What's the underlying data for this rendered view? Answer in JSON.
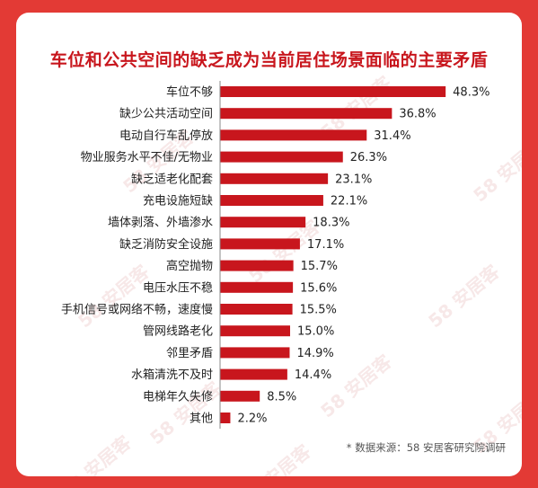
{
  "title": "车位和公共空间的缺乏成为当前居住场景面临的主要矛盾",
  "source": "* 数据来源：58 安居客研究院调研",
  "watermark": "58 安居客",
  "colors": {
    "background": "#e33a35",
    "bar": "#c8161d",
    "title": "#c8161d"
  },
  "chart_data": {
    "type": "bar",
    "orientation": "horizontal",
    "categories": [
      "车位不够",
      "缺少公共活动空间",
      "电动自行车乱停放",
      "物业服务水平不佳/无物业",
      "缺乏适老化配套",
      "充电设施短缺",
      "墙体剥落、外墙渗水",
      "缺乏消防安全设施",
      "高空抛物",
      "电压水压不稳",
      "手机信号或网络不畅，速度慢",
      "管网线路老化",
      "邻里矛盾",
      "水箱清洗不及时",
      "电梯年久失修",
      "其他"
    ],
    "values": [
      48.3,
      36.8,
      31.4,
      26.3,
      23.1,
      22.1,
      18.3,
      17.1,
      15.7,
      15.6,
      15.5,
      15.0,
      14.9,
      14.4,
      8.5,
      2.2
    ],
    "labels": [
      "48.3%",
      "36.8%",
      "31.4%",
      "26.3%",
      "23.1%",
      "22.1%",
      "18.3%",
      "17.1%",
      "15.7%",
      "15.6%",
      "15.5%",
      "15.0%",
      "14.9%",
      "14.4%",
      "8.5%",
      "2.2%"
    ],
    "title": "车位和公共空间的缺乏成为当前居住场景面临的主要矛盾",
    "xlim": [
      0,
      50
    ],
    "grid": false,
    "legend": "none"
  }
}
